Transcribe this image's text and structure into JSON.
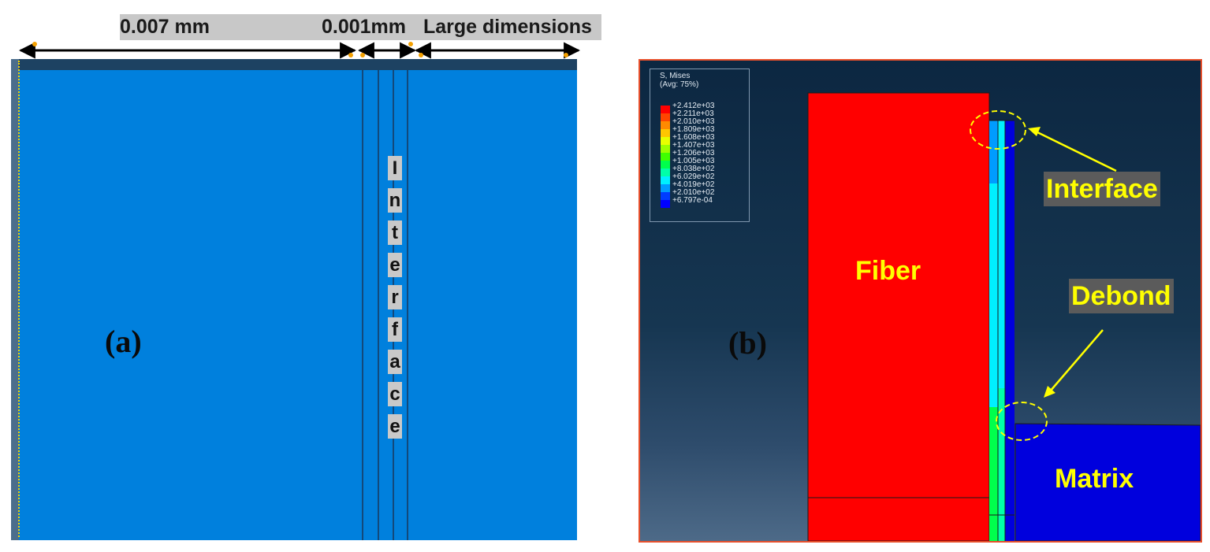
{
  "panel_a": {
    "letter": "(a)",
    "dims": {
      "left": "0.007 mm",
      "middle": "0.001mm",
      "right": "Large dimensions"
    },
    "interface_letters": [
      "I",
      "n",
      "t",
      "e",
      "r",
      "f",
      "a",
      "c",
      "e"
    ],
    "colors": {
      "body": "#0080dd",
      "strip": "#1d4262",
      "dimension_arrow": "#000000",
      "arrow_tip": "#f3a000"
    }
  },
  "panel_b": {
    "letter": "(b)",
    "legend": {
      "title": "S, Mises",
      "subtitle": "(Avg: 75%)",
      "entries": [
        {
          "value": "+2.412e+03",
          "color": "#ff0000"
        },
        {
          "value": "+2.211e+03",
          "color": "#ff4500"
        },
        {
          "value": "+2.010e+03",
          "color": "#ff8a00"
        },
        {
          "value": "+1.809e+03",
          "color": "#ffc600"
        },
        {
          "value": "+1.608e+03",
          "color": "#e8ff00"
        },
        {
          "value": "+1.407e+03",
          "color": "#9cff00"
        },
        {
          "value": "+1.206e+03",
          "color": "#40ff00"
        },
        {
          "value": "+1.005e+03",
          "color": "#00ff4c"
        },
        {
          "value": "+8.038e+02",
          "color": "#00ffa8"
        },
        {
          "value": "+6.029e+02",
          "color": "#00f0ff"
        },
        {
          "value": "+4.019e+02",
          "color": "#009cff"
        },
        {
          "value": "+2.010e+02",
          "color": "#003cff"
        },
        {
          "value": "+6.797e-04",
          "color": "#0000ff"
        }
      ]
    },
    "labels": {
      "fiber": "Fiber",
      "matrix": "Matrix",
      "interface": "Interface",
      "debond": "Debond"
    },
    "colors": {
      "fiber": "#ff0000",
      "matrix": "#0000dd",
      "annotation": "#ffff00",
      "border": "#e8502c"
    }
  }
}
